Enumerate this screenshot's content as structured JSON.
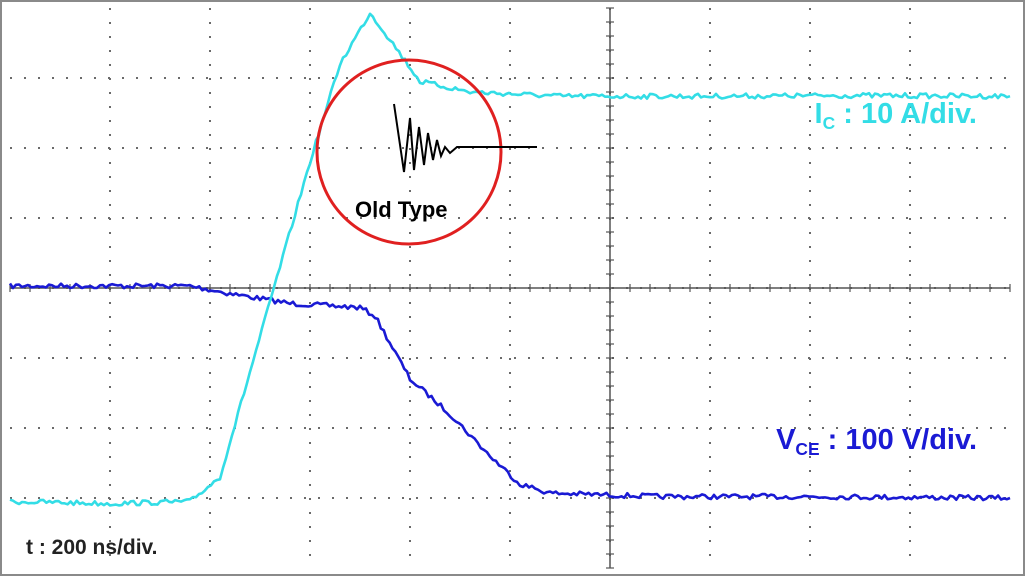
{
  "chart_data": {
    "type": "line",
    "grid": true,
    "divisions": {
      "x": 10,
      "y": 8
    },
    "x_unit": "div",
    "y_unit": "div",
    "xlim": [
      0,
      10
    ],
    "ylim": [
      0,
      8
    ],
    "series": [
      {
        "id": "ic",
        "color": "#33dde6",
        "label_main": "I",
        "label_sub": "C",
        "label_rest": " : 10 A/div.",
        "points": [
          [
            0,
            0.95
          ],
          [
            1,
            0.92
          ],
          [
            1.8,
            0.95
          ],
          [
            2.1,
            1.3
          ],
          [
            2.4,
            2.8
          ],
          [
            2.7,
            4.3
          ],
          [
            3,
            5.8
          ],
          [
            3.3,
            7.2
          ],
          [
            3.6,
            7.93
          ],
          [
            3.8,
            7.55
          ],
          [
            4.1,
            6.95
          ],
          [
            4.6,
            6.8
          ],
          [
            5.5,
            6.74
          ],
          [
            7,
            6.74
          ],
          [
            8.5,
            6.75
          ],
          [
            10,
            6.74
          ]
        ]
      },
      {
        "id": "vce",
        "color": "#1a1ad4",
        "label_main": "V",
        "label_sub": "CE",
        "label_rest": " : 100 V/div.",
        "points": [
          [
            0,
            4.03
          ],
          [
            1.8,
            4.03
          ],
          [
            2.2,
            3.92
          ],
          [
            2.8,
            3.78
          ],
          [
            3.5,
            3.72
          ],
          [
            3.65,
            3.6
          ],
          [
            4,
            2.7
          ],
          [
            4.4,
            2.2
          ],
          [
            4.8,
            1.6
          ],
          [
            5.1,
            1.2
          ],
          [
            5.4,
            1.07
          ],
          [
            6.5,
            1.02
          ],
          [
            8,
            1.02
          ],
          [
            10,
            1.0
          ]
        ]
      }
    ],
    "annotation": {
      "label": "Old Type",
      "circle_color": "#e02020"
    },
    "timebase_label": "t : 200 ns/div."
  }
}
